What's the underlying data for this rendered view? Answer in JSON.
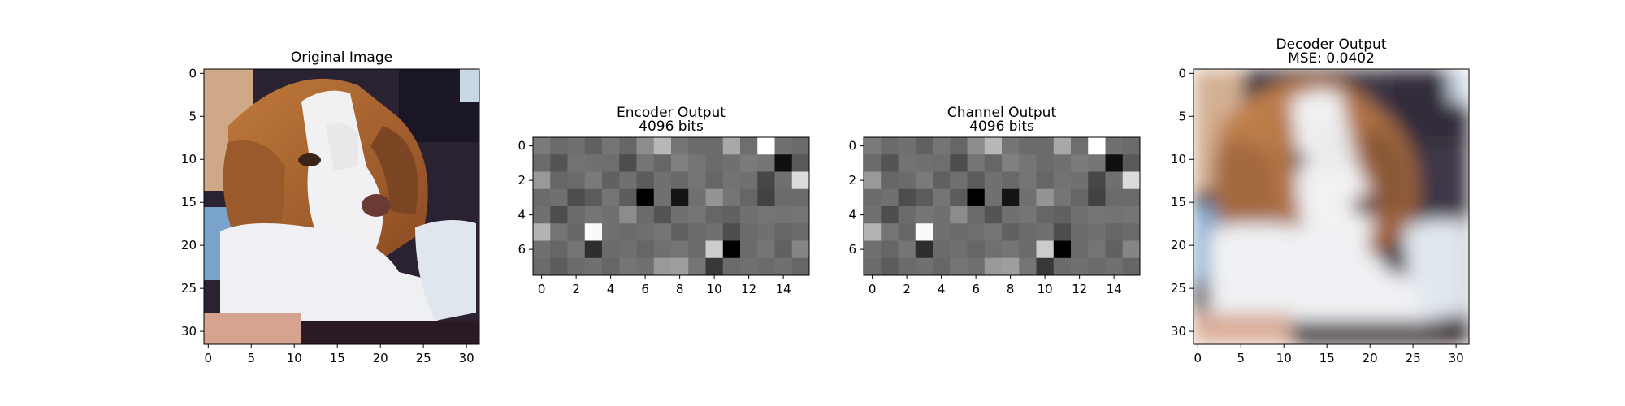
{
  "chart_data": [
    {
      "type": "image",
      "title": "Original Image",
      "subtitle": "",
      "xlim": [
        0,
        32
      ],
      "ylim": [
        32,
        0
      ],
      "xticks": [
        "0",
        "5",
        "10",
        "15",
        "20",
        "25",
        "30"
      ],
      "yticks": [
        "0",
        "5",
        "10",
        "15",
        "20",
        "25",
        "30"
      ],
      "content": "color photograph of a dog (brown and white beagle-like dog)"
    },
    {
      "type": "heatmap",
      "title": "Encoder Output",
      "subtitle": "4096 bits",
      "colormap": "gray",
      "xlim": [
        0,
        16
      ],
      "ylim": [
        8,
        0
      ],
      "xticks": [
        "0",
        "2",
        "4",
        "6",
        "8",
        "10",
        "12",
        "14"
      ],
      "yticks": [
        "0",
        "2",
        "4",
        "6"
      ],
      "values": [
        [
          0.48,
          0.42,
          0.44,
          0.38,
          0.46,
          0.4,
          0.55,
          0.72,
          0.46,
          0.42,
          0.42,
          0.66,
          0.43,
          1.0,
          0.44,
          0.42
        ],
        [
          0.42,
          0.33,
          0.45,
          0.44,
          0.43,
          0.3,
          0.46,
          0.4,
          0.5,
          0.46,
          0.42,
          0.44,
          0.48,
          0.46,
          0.06,
          0.35
        ],
        [
          0.6,
          0.4,
          0.42,
          0.48,
          0.38,
          0.44,
          0.36,
          0.44,
          0.41,
          0.46,
          0.4,
          0.45,
          0.44,
          0.28,
          0.44,
          0.86
        ],
        [
          0.42,
          0.44,
          0.3,
          0.36,
          0.46,
          0.36,
          0.0,
          0.44,
          0.08,
          0.44,
          0.58,
          0.46,
          0.4,
          0.26,
          0.42,
          0.42
        ],
        [
          0.44,
          0.3,
          0.42,
          0.46,
          0.44,
          0.55,
          0.42,
          0.33,
          0.44,
          0.46,
          0.4,
          0.38,
          0.44,
          0.46,
          0.45,
          0.46
        ],
        [
          0.7,
          0.46,
          0.4,
          0.98,
          0.44,
          0.42,
          0.44,
          0.46,
          0.38,
          0.42,
          0.44,
          0.3,
          0.42,
          0.44,
          0.4,
          0.42
        ],
        [
          0.44,
          0.4,
          0.46,
          0.18,
          0.42,
          0.44,
          0.4,
          0.44,
          0.46,
          0.42,
          0.8,
          0.0,
          0.42,
          0.46,
          0.38,
          0.52
        ],
        [
          0.42,
          0.36,
          0.42,
          0.44,
          0.4,
          0.46,
          0.44,
          0.6,
          0.62,
          0.46,
          0.22,
          0.42,
          0.44,
          0.42,
          0.44,
          0.4
        ]
      ]
    },
    {
      "type": "heatmap",
      "title": "Channel Output",
      "subtitle": "4096 bits",
      "colormap": "gray",
      "xlim": [
        0,
        16
      ],
      "ylim": [
        8,
        0
      ],
      "xticks": [
        "0",
        "2",
        "4",
        "6",
        "8",
        "10",
        "12",
        "14"
      ],
      "yticks": [
        "0",
        "2",
        "4",
        "6"
      ],
      "values": [
        [
          0.48,
          0.42,
          0.44,
          0.38,
          0.46,
          0.4,
          0.55,
          0.72,
          0.46,
          0.42,
          0.42,
          0.66,
          0.43,
          1.0,
          0.44,
          0.42
        ],
        [
          0.42,
          0.33,
          0.45,
          0.44,
          0.43,
          0.3,
          0.46,
          0.4,
          0.5,
          0.46,
          0.42,
          0.44,
          0.48,
          0.46,
          0.06,
          0.35
        ],
        [
          0.6,
          0.4,
          0.42,
          0.48,
          0.38,
          0.44,
          0.36,
          0.44,
          0.41,
          0.46,
          0.4,
          0.45,
          0.44,
          0.28,
          0.44,
          0.86
        ],
        [
          0.42,
          0.44,
          0.3,
          0.36,
          0.46,
          0.36,
          0.0,
          0.44,
          0.08,
          0.44,
          0.58,
          0.46,
          0.4,
          0.26,
          0.42,
          0.42
        ],
        [
          0.44,
          0.3,
          0.42,
          0.46,
          0.44,
          0.55,
          0.42,
          0.33,
          0.44,
          0.46,
          0.4,
          0.38,
          0.44,
          0.46,
          0.45,
          0.46
        ],
        [
          0.7,
          0.46,
          0.4,
          0.98,
          0.44,
          0.42,
          0.44,
          0.46,
          0.38,
          0.42,
          0.44,
          0.3,
          0.42,
          0.44,
          0.4,
          0.42
        ],
        [
          0.44,
          0.4,
          0.46,
          0.18,
          0.42,
          0.44,
          0.4,
          0.44,
          0.46,
          0.42,
          0.8,
          0.0,
          0.42,
          0.46,
          0.38,
          0.52
        ],
        [
          0.42,
          0.36,
          0.42,
          0.44,
          0.4,
          0.46,
          0.44,
          0.6,
          0.62,
          0.46,
          0.22,
          0.42,
          0.44,
          0.42,
          0.44,
          0.4
        ]
      ]
    },
    {
      "type": "image",
      "title": "Decoder Output",
      "subtitle": "MSE: 0.0402",
      "xlim": [
        0,
        32
      ],
      "ylim": [
        32,
        0
      ],
      "xticks": [
        "0",
        "5",
        "10",
        "15",
        "20",
        "25",
        "30"
      ],
      "yticks": [
        "0",
        "5",
        "10",
        "15",
        "20",
        "25",
        "30"
      ],
      "content": "blurry reconstruction of the dog photograph"
    }
  ]
}
